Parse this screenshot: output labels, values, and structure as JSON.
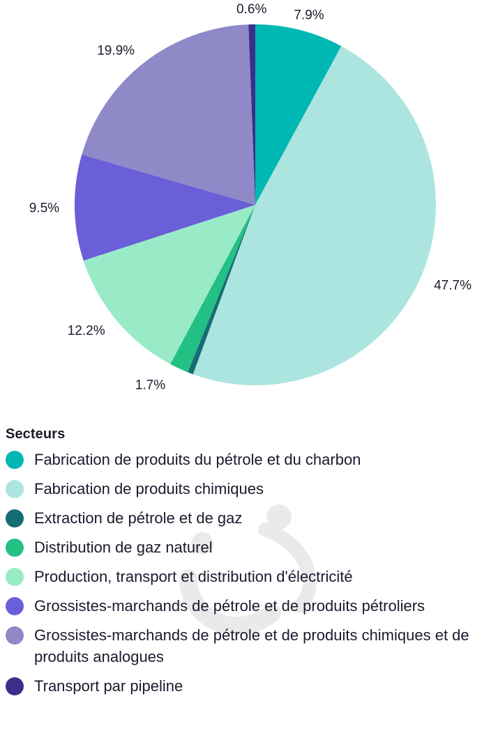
{
  "chart_data": {
    "type": "pie",
    "legend_title": "Secteurs",
    "legend_position": "bottom",
    "slices": [
      {
        "name": "Fabrication de produits du pétrole et du charbon",
        "value": 7.9,
        "label": "7.9%",
        "color": "#00b8b3"
      },
      {
        "name": "Fabrication de produits chimiques",
        "value": 47.7,
        "label": "47.7%",
        "color": "#ace5df"
      },
      {
        "name": "Extraction de pétrole et de gaz",
        "value": 0.5,
        "label": "",
        "color": "#146e74"
      },
      {
        "name": "Distribution de gaz naturel",
        "value": 1.7,
        "label": "1.7%",
        "color": "#23c084"
      },
      {
        "name": "Production, transport et distribution d'électricité",
        "value": 12.2,
        "label": "12.2%",
        "color": "#99ebc8"
      },
      {
        "name": "Grossistes-marchands de pétrole et de produits pétroliers",
        "value": 9.5,
        "label": "9.5%",
        "color": "#6a5ed9"
      },
      {
        "name": "Grossistes-marchands de pétrole et de produits chimiques et de produits analogues",
        "value": 19.9,
        "label": "19.9%",
        "color": "#8f89c7"
      },
      {
        "name": "Transport par pipeline",
        "value": 0.6,
        "label": "0.6%",
        "color": "#3a2f8a"
      }
    ]
  }
}
